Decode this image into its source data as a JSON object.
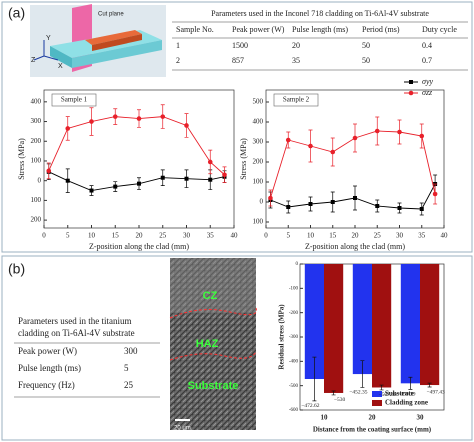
{
  "panel_a": {
    "label": "(a)",
    "schematic": {
      "label": "Cut plane",
      "axes": [
        "Z",
        "Y",
        "X"
      ]
    },
    "table": {
      "title": "Parameters used in the Inconel 718 cladding on Ti-6Al-4V substrate",
      "header": [
        "Sample No.",
        "Peak power (W)",
        "Pulse length (ms)",
        "Period (ms)",
        "Duty cycle"
      ],
      "rows": [
        [
          1,
          1500,
          20,
          50,
          0.4
        ],
        [
          2,
          857,
          35,
          50,
          0.7
        ]
      ]
    }
  },
  "panel_b": {
    "label": "(b)",
    "table": {
      "title_lines": [
        "Parameters used in the titanium",
        "cladding on Ti-6Al-4V substrate"
      ],
      "rows": [
        [
          "Peak power (W)",
          300
        ],
        [
          "Pulse length (ms)",
          5
        ],
        [
          "Frequency (Hz)",
          25
        ]
      ]
    },
    "micrograph": {
      "labels": [
        "CZ",
        "HAZ",
        "Substrate"
      ],
      "scale": "20 μm"
    }
  },
  "chart_data": [
    {
      "type": "line",
      "title": "Sample 1",
      "xlabel": "Z-position along the clad (mm)",
      "ylabel": "Stress (MPa)",
      "x": [
        1,
        5,
        10,
        15,
        20,
        25,
        30,
        35,
        38
      ],
      "xlim": [
        0,
        40
      ],
      "xticks": [
        0,
        5,
        10,
        15,
        20,
        25,
        30,
        35,
        40
      ],
      "ylim": [
        -240,
        460
      ],
      "yticks": [
        400,
        300,
        200,
        100,
        0,
        {
          "value": -100,
          "label": "100"
        },
        {
          "value": -200,
          "label": "200"
        }
      ],
      "series": [
        {
          "color": "#000000",
          "marker": "square",
          "values": [
            45,
            0,
            -50,
            -30,
            -15,
            15,
            10,
            5,
            20
          ],
          "errors": [
            40,
            60,
            25,
            25,
            30,
            40,
            45,
            50,
            30
          ]
        },
        {
          "color": "#e8202a",
          "marker": "circle",
          "values": [
            50,
            265,
            300,
            325,
            315,
            325,
            280,
            95,
            30
          ],
          "errors": [
            40,
            60,
            70,
            40,
            45,
            60,
            60,
            60,
            40
          ]
        }
      ]
    },
    {
      "type": "line",
      "title": "Sample 2",
      "xlabel": "Z-position along the clad (mm)",
      "ylabel": "Stress (MPa)",
      "x": [
        1,
        5,
        10,
        15,
        20,
        25,
        30,
        35,
        38
      ],
      "xlim": [
        0,
        40
      ],
      "xticks": [
        0,
        5,
        10,
        15,
        20,
        25,
        30,
        35,
        40
      ],
      "ylim": [
        -130,
        560
      ],
      "yticks": [
        500,
        400,
        300,
        200,
        100,
        0,
        {
          "value": -100,
          "label": "100"
        }
      ],
      "legend": "upper right",
      "series": [
        {
          "name": "σyy",
          "color": "#000000",
          "marker": "square",
          "values": [
            10,
            -25,
            -10,
            0,
            20,
            -20,
            -30,
            -35,
            90
          ],
          "errors": [
            40,
            30,
            35,
            50,
            60,
            30,
            25,
            30,
            45
          ]
        },
        {
          "name": "σzz",
          "color": "#e8202a",
          "marker": "circle",
          "values": [
            20,
            310,
            280,
            250,
            320,
            355,
            350,
            330,
            40
          ],
          "errors": [
            40,
            40,
            80,
            70,
            70,
            70,
            60,
            60,
            50
          ]
        }
      ]
    },
    {
      "type": "bar",
      "xlabel": "Distance from the coating surface (mm)",
      "ylabel": "Residual stress (MPa)",
      "categories": [
        "10",
        "20",
        "30"
      ],
      "ylim": [
        -600,
        0
      ],
      "yticks": [
        -600,
        -500,
        -400,
        -300,
        -200,
        -100,
        0
      ],
      "legend": "lower right",
      "series": [
        {
          "name": "Substrate",
          "color": "#2233ee",
          "values": [
            -472.62,
            -452.35,
            -490.39
          ],
          "value_labels": [
            "−472.62",
            "−452.35",
            "−490.39"
          ],
          "errors": [
            90,
            55,
            25
          ]
        },
        {
          "name": "Cladding zone",
          "color": "#a01010",
          "values": [
            -530,
            -507.48,
            -497.43
          ],
          "value_labels": [
            "−530",
            "−507.48",
            "−497.43"
          ],
          "errors": [
            8,
            10,
            8
          ]
        }
      ]
    }
  ]
}
